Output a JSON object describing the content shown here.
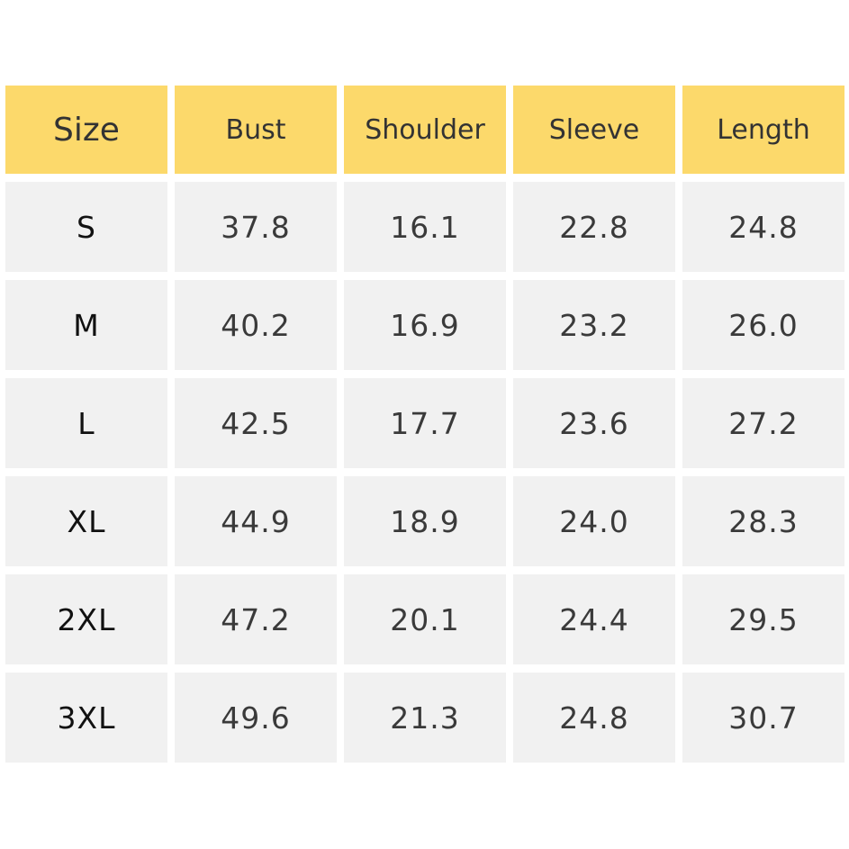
{
  "table": {
    "header": [
      "Size",
      "Bust",
      "Shoulder",
      "Sleeve",
      "Length"
    ],
    "rows": [
      [
        "S",
        "37.8",
        "16.1",
        "22.8",
        "24.8"
      ],
      [
        "M",
        "40.2",
        "16.9",
        "23.2",
        "26.0"
      ],
      [
        "L",
        "42.5",
        "17.7",
        "23.6",
        "27.2"
      ],
      [
        "XL",
        "44.9",
        "18.9",
        "24.0",
        "28.3"
      ],
      [
        "2XL",
        "47.2",
        "20.1",
        "24.4",
        "29.5"
      ],
      [
        "3XL",
        "49.6",
        "21.3",
        "24.8",
        "30.7"
      ]
    ]
  }
}
